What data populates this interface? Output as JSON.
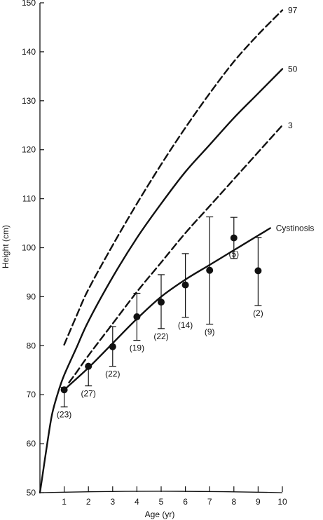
{
  "chart_data": {
    "type": "line",
    "title": "",
    "xlabel": "Age (yr)",
    "ylabel": "Height (cm)",
    "xlim": [
      0,
      10
    ],
    "ylim": [
      50,
      150
    ],
    "xticks": [
      1,
      2,
      3,
      4,
      5,
      6,
      7,
      8,
      9,
      10
    ],
    "yticks": [
      50,
      60,
      70,
      80,
      90,
      100,
      110,
      120,
      130,
      140,
      150
    ],
    "grid": false,
    "legend": "none",
    "series": [
      {
        "name": "97",
        "style": "dashed",
        "points": [
          [
            1,
            80.2
          ],
          [
            1.5,
            86
          ],
          [
            2,
            91.5
          ],
          [
            3,
            100.5
          ],
          [
            4,
            109
          ],
          [
            5,
            117
          ],
          [
            6,
            124.5
          ],
          [
            7,
            131.5
          ],
          [
            8,
            138
          ],
          [
            9,
            143.5
          ],
          [
            10,
            148.5
          ]
        ]
      },
      {
        "name": "50",
        "style": "solid",
        "points": [
          [
            0,
            50
          ],
          [
            0.15,
            55
          ],
          [
            0.3,
            60
          ],
          [
            0.5,
            66
          ],
          [
            0.75,
            70.5
          ],
          [
            1,
            74
          ],
          [
            1.5,
            79.5
          ],
          [
            2,
            85
          ],
          [
            3,
            94
          ],
          [
            4,
            102
          ],
          [
            5,
            109
          ],
          [
            6,
            115.5
          ],
          [
            7,
            121
          ],
          [
            8,
            126.5
          ],
          [
            9,
            131.5
          ],
          [
            10,
            136.5
          ]
        ]
      },
      {
        "name": "3",
        "style": "dashed",
        "points": [
          [
            1.2,
            72.5
          ],
          [
            1.5,
            74.5
          ],
          [
            2,
            78
          ],
          [
            3,
            84.5
          ],
          [
            4,
            91
          ],
          [
            5,
            97
          ],
          [
            6,
            103
          ],
          [
            7,
            108.5
          ],
          [
            8,
            114
          ],
          [
            9,
            119.5
          ],
          [
            10,
            125
          ]
        ]
      },
      {
        "name": "Cystinosis",
        "style": "solid",
        "points": [
          [
            1,
            71
          ],
          [
            2,
            75.5
          ],
          [
            3,
            80.5
          ],
          [
            4,
            85.5
          ],
          [
            5,
            90
          ],
          [
            6,
            93.5
          ],
          [
            7,
            96.5
          ],
          [
            8,
            99.5
          ],
          [
            9,
            102.5
          ],
          [
            9.5,
            104
          ]
        ]
      }
    ],
    "measurements": [
      {
        "x": 1,
        "y": 71.0,
        "low": 67.5,
        "high": 71.5,
        "n": "(23)"
      },
      {
        "x": 2,
        "y": 75.8,
        "low": 71.8,
        "high": 75.8,
        "n": "(27)"
      },
      {
        "x": 3,
        "y": 79.8,
        "low": 75.8,
        "high": 83.9,
        "n": "(22)"
      },
      {
        "x": 4,
        "y": 85.9,
        "low": 81.1,
        "high": 90.7,
        "n": "(19)"
      },
      {
        "x": 5,
        "y": 88.9,
        "low": 83.5,
        "high": 94.5,
        "n": "(22)"
      },
      {
        "x": 6,
        "y": 92.4,
        "low": 85.8,
        "high": 98.8,
        "n": "(14)"
      },
      {
        "x": 7,
        "y": 95.4,
        "low": 84.4,
        "high": 106.3,
        "n": "(9)"
      },
      {
        "x": 8,
        "y": 102.0,
        "low": 97.8,
        "high": 106.2,
        "n": "(5)"
      },
      {
        "x": 9,
        "y": 95.3,
        "low": 88.2,
        "high": 102.1,
        "n": "(2)"
      }
    ]
  }
}
